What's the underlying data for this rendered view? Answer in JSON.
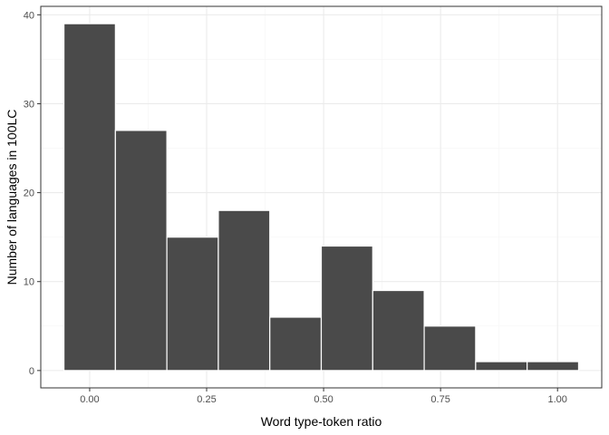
{
  "chart_data": {
    "type": "bar",
    "xlabel": "Word type-token ratio",
    "ylabel": "Number of languages in 100LC",
    "bin_width": 0.11,
    "bins": [
      {
        "x": 0.0,
        "count": 39
      },
      {
        "x": 0.11,
        "count": 27
      },
      {
        "x": 0.22,
        "count": 15
      },
      {
        "x": 0.33,
        "count": 18
      },
      {
        "x": 0.44,
        "count": 6
      },
      {
        "x": 0.55,
        "count": 14
      },
      {
        "x": 0.66,
        "count": 9
      },
      {
        "x": 0.77,
        "count": 5
      },
      {
        "x": 0.88,
        "count": 1
      },
      {
        "x": 0.99,
        "count": 1
      }
    ],
    "x_ticks": [
      "0.00",
      "0.25",
      "0.50",
      "0.75",
      "1.00"
    ],
    "x_tick_values": [
      0,
      0.25,
      0.5,
      0.75,
      1.0
    ],
    "y_ticks": [
      "0",
      "10",
      "20",
      "30",
      "40"
    ],
    "y_tick_values": [
      0,
      10,
      20,
      30,
      40
    ],
    "xlim": [
      -0.1045,
      1.0945
    ],
    "ylim": [
      -1.95,
      40.95
    ],
    "grid": true,
    "colors": {
      "bar_fill": "#4a4a4a",
      "bar_stroke": "#ffffff",
      "grid_major": "#ebebeb",
      "grid_minor": "#f5f5f5",
      "panel_border": "#333333",
      "tick": "#333333"
    }
  }
}
